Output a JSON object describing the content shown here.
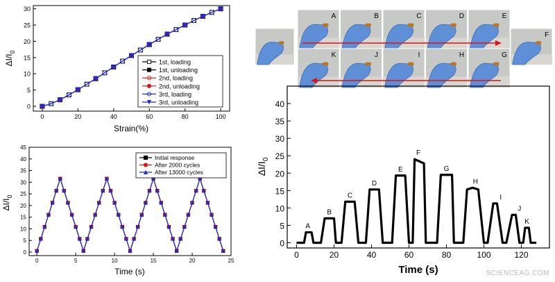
{
  "watermark": "SCIENCEAG.COM",
  "colors": {
    "black": "#000000",
    "red": "#dd1111",
    "blue": "#1d2bcc",
    "dark_blue": "#2a2a9a",
    "arrow_red": "#dd1111"
  },
  "photos": {
    "top_row_letters": [
      "A",
      "B",
      "C",
      "D",
      "E"
    ],
    "bottom_row_letters": [
      "K",
      "J",
      "I",
      "H",
      "G"
    ],
    "side_left_letter": "",
    "side_right_letter": "F"
  },
  "chart_data": [
    {
      "type": "line",
      "name": "strain_response",
      "xlabel": "Strain(%)",
      "ylabel_main": "ΔI/I",
      "ylabel_sub": "0",
      "xlim": [
        -5,
        105
      ],
      "ylim": [
        -1.5,
        31
      ],
      "x_ticks": [
        0,
        20,
        40,
        60,
        80,
        100
      ],
      "y_ticks": [
        0,
        5,
        10,
        15,
        20,
        25,
        30
      ],
      "legend_placement": "bottom-right",
      "x": [
        0,
        5,
        10,
        15,
        20,
        25,
        30,
        35,
        40,
        45,
        50,
        55,
        60,
        65,
        70,
        75,
        80,
        85,
        90,
        95,
        100
      ],
      "series": [
        {
          "name": "1st, loading",
          "color": "#000000",
          "marker": "open-square",
          "values": [
            0,
            0.8,
            2.0,
            3.5,
            5.1,
            6.8,
            8.5,
            10.3,
            12.1,
            13.9,
            15.6,
            17.3,
            19.0,
            20.6,
            22.2,
            23.6,
            25.0,
            26.4,
            27.7,
            28.9,
            30.0
          ]
        },
        {
          "name": "1st, unloading",
          "color": "#000000",
          "marker": "square",
          "values": [
            0,
            0.8,
            2.0,
            3.5,
            5.1,
            6.8,
            8.5,
            10.3,
            12.1,
            13.9,
            15.6,
            17.3,
            19.0,
            20.6,
            22.2,
            23.6,
            25.0,
            26.4,
            27.7,
            28.9,
            30.0
          ]
        },
        {
          "name": "2nd, loading",
          "color": "#dd1111",
          "marker": "open-circle",
          "values": [
            0,
            0.8,
            2.0,
            3.5,
            5.1,
            6.8,
            8.5,
            10.3,
            12.1,
            13.9,
            15.6,
            17.3,
            19.0,
            20.6,
            22.2,
            23.6,
            25.0,
            26.4,
            27.7,
            28.9,
            30.0
          ]
        },
        {
          "name": "2nd, unloading",
          "color": "#dd1111",
          "marker": "circle",
          "values": [
            0,
            0.8,
            2.0,
            3.5,
            5.1,
            6.8,
            8.5,
            10.3,
            12.1,
            13.9,
            15.6,
            17.3,
            19.0,
            20.6,
            22.2,
            23.6,
            25.0,
            26.4,
            27.7,
            28.9,
            30.0
          ]
        },
        {
          "name": "3rd, loading",
          "color": "#1d2bcc",
          "marker": "open-circle",
          "values": [
            0,
            0.8,
            2.0,
            3.5,
            5.1,
            6.8,
            8.5,
            10.3,
            12.1,
            13.9,
            15.6,
            17.3,
            19.0,
            20.6,
            22.2,
            23.6,
            25.0,
            26.4,
            27.7,
            28.9,
            30.0
          ]
        },
        {
          "name": "3rd, unloading",
          "color": "#1d2bcc",
          "marker": "triangle-down",
          "values": [
            0,
            0.8,
            2.0,
            3.5,
            5.1,
            6.8,
            8.5,
            10.3,
            12.1,
            13.9,
            15.6,
            17.3,
            19.0,
            20.6,
            22.2,
            23.6,
            25.0,
            26.4,
            27.7,
            28.9,
            30.0
          ]
        }
      ]
    },
    {
      "type": "line",
      "name": "cycling_response",
      "xlabel": "Time (s)",
      "ylabel_main": "ΔI/I",
      "ylabel_sub": "0",
      "xlim": [
        -1,
        25
      ],
      "ylim": [
        -1.5,
        45
      ],
      "x_ticks": [
        0,
        5,
        10,
        15,
        20,
        25
      ],
      "y_ticks": [
        0,
        5,
        10,
        15,
        20,
        25,
        30,
        35,
        40,
        45
      ],
      "legend_placement": "top-right",
      "x": [
        0,
        3,
        6,
        9,
        12,
        15,
        18,
        21,
        24
      ],
      "series": [
        {
          "name": "Initial response",
          "color": "#000000",
          "marker": "square",
          "values": [
            0.5,
            31.5,
            0.5,
            31.5,
            0.5,
            31.5,
            0.5,
            31.5,
            0.5
          ]
        },
        {
          "name": "After 2000 cycles",
          "color": "#dd1111",
          "marker": "circle",
          "values": [
            0.5,
            31.5,
            0.5,
            31.5,
            0.5,
            31.5,
            0.5,
            31.5,
            0.5
          ]
        },
        {
          "name": "After 13000 cycles",
          "color": "#1d2bcc",
          "marker": "triangle",
          "values": [
            0.5,
            31.5,
            0.5,
            31.5,
            0.5,
            31.5,
            0.5,
            31.5,
            0.5
          ]
        }
      ]
    },
    {
      "type": "line",
      "name": "finger_bending_response",
      "xlabel": "Time (s)",
      "ylabel_main": "ΔI/I",
      "ylabel_sub": "0",
      "xlim": [
        -5,
        135
      ],
      "ylim": [
        -1.5,
        45
      ],
      "x_ticks": [
        0,
        20,
        40,
        60,
        80,
        100,
        120
      ],
      "y_ticks": [
        0,
        5,
        10,
        15,
        20,
        25,
        30,
        35,
        40
      ],
      "color": "#000000",
      "x": [
        0,
        4,
        5,
        8,
        9,
        13,
        15,
        20,
        21,
        24,
        26,
        31,
        33,
        37,
        39,
        44,
        46,
        51,
        53,
        58,
        60,
        62,
        63,
        68,
        69,
        75,
        77,
        83,
        84,
        89,
        91,
        94,
        97,
        100,
        102,
        105,
        107,
        110,
        112,
        115,
        117,
        119,
        121,
        122,
        124,
        125,
        128
      ],
      "values": [
        0,
        0,
        3,
        3,
        0,
        0,
        7,
        7,
        0,
        0,
        11.8,
        11.8,
        0,
        0,
        15.3,
        15.3,
        0,
        0,
        19.3,
        19.3,
        0,
        0,
        24,
        22.8,
        0,
        0,
        19.5,
        19.5,
        0,
        0,
        15.3,
        15.8,
        15.3,
        0,
        0,
        11.3,
        11.3,
        0,
        0,
        8,
        8,
        0,
        0,
        4.3,
        4.3,
        0,
        0
      ],
      "point_labels": [
        {
          "x": 6,
          "y": 3,
          "text": "A"
        },
        {
          "x": 17.5,
          "y": 7,
          "text": "B"
        },
        {
          "x": 28.5,
          "y": 11.8,
          "text": "C"
        },
        {
          "x": 41.5,
          "y": 15.3,
          "text": "D"
        },
        {
          "x": 55.5,
          "y": 19.3,
          "text": "E"
        },
        {
          "x": 65,
          "y": 24,
          "text": "F"
        },
        {
          "x": 80,
          "y": 19.5,
          "text": "G"
        },
        {
          "x": 95.5,
          "y": 15.8,
          "text": "H"
        },
        {
          "x": 109,
          "y": 11.3,
          "text": "I"
        },
        {
          "x": 119,
          "y": 8,
          "text": "J"
        },
        {
          "x": 123,
          "y": 4.3,
          "text": "K"
        }
      ]
    }
  ]
}
